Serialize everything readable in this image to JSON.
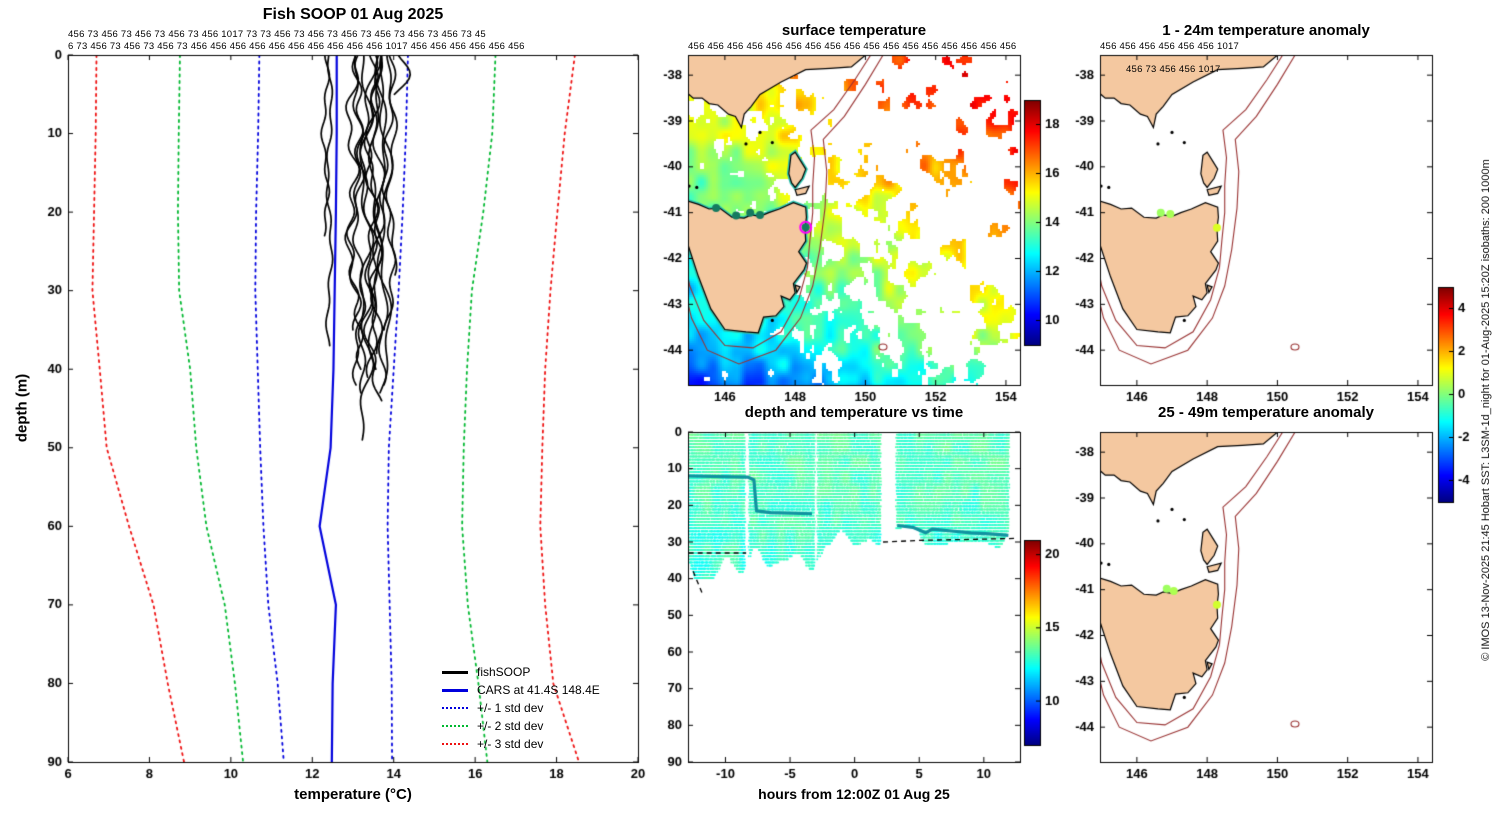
{
  "copyright": "© IMOS 13-Nov-2025 21:45 Hobart SST: L3SM-1d_night for 01-Aug-2025 15:20Z isobaths: 200  1000m",
  "top_labels": {
    "row1": "456 73 456 73 456 73 456 73 456 1017 73 73 456 73 456 73 456 73 456 73 456 73 456 73 45",
    "row2_left": "6 73 456 73 456 73 456 73 456 456 456 456 456 456 456 456 456 456 1017 456 456 456 456 456 456",
    "row2_mid": "456 456 456 456 456 456 456 456 456 456 456 456 456 456 456 456 456",
    "row2_right": "456 456 456 456 456 456 1017",
    "fragment": "456 73 456 456 1017"
  },
  "geo": {
    "land_color": "#f4c8a0",
    "coast_color": "#000000",
    "isobath_color": "#993333",
    "sst_coast_halo": "#2fc7b2",
    "mainland": [
      [
        144.9,
        -37.5
      ],
      [
        150.1,
        -37.5
      ],
      [
        149.6,
        -37.82
      ],
      [
        149.0,
        -37.85
      ],
      [
        148.3,
        -37.88
      ],
      [
        147.6,
        -38.15
      ],
      [
        147.0,
        -38.42
      ],
      [
        146.75,
        -38.68
      ],
      [
        146.55,
        -38.85
      ],
      [
        146.47,
        -39.14
      ],
      [
        146.3,
        -38.9
      ],
      [
        146.1,
        -38.85
      ],
      [
        145.8,
        -38.65
      ],
      [
        145.55,
        -38.62
      ],
      [
        145.35,
        -38.5
      ],
      [
        145.1,
        -38.5
      ],
      [
        144.9,
        -38.37
      ]
    ],
    "tasmania": [
      [
        144.68,
        -40.68
      ],
      [
        145.25,
        -40.82
      ],
      [
        145.55,
        -40.92
      ],
      [
        145.85,
        -40.9
      ],
      [
        146.2,
        -41.1
      ],
      [
        146.55,
        -41.12
      ],
      [
        146.75,
        -41.05
      ],
      [
        147.0,
        -41.08
      ],
      [
        147.25,
        -41.0
      ],
      [
        147.55,
        -40.92
      ],
      [
        147.95,
        -40.78
      ],
      [
        148.3,
        -40.88
      ],
      [
        148.32,
        -41.1
      ],
      [
        148.28,
        -41.35
      ],
      [
        148.3,
        -41.62
      ],
      [
        148.1,
        -41.85
      ],
      [
        148.32,
        -42.1
      ],
      [
        148.25,
        -42.25
      ],
      [
        147.95,
        -42.55
      ],
      [
        148.0,
        -42.75
      ],
      [
        147.85,
        -42.9
      ],
      [
        147.6,
        -42.82
      ],
      [
        147.68,
        -43.05
      ],
      [
        147.45,
        -43.25
      ],
      [
        147.1,
        -43.28
      ],
      [
        146.95,
        -43.62
      ],
      [
        146.6,
        -43.6
      ],
      [
        146.0,
        -43.55
      ],
      [
        145.6,
        -43.1
      ],
      [
        145.25,
        -42.4
      ],
      [
        144.95,
        -41.7
      ],
      [
        144.7,
        -41.2
      ]
    ],
    "flinders": [
      [
        147.82,
        -40.15
      ],
      [
        147.88,
        -39.75
      ],
      [
        148.0,
        -39.68
      ],
      [
        148.3,
        -40.05
      ],
      [
        148.2,
        -40.25
      ],
      [
        148.0,
        -40.45
      ],
      [
        147.9,
        -40.35
      ]
    ],
    "cape_barren": [
      [
        148.0,
        -40.5
      ],
      [
        148.4,
        -40.42
      ],
      [
        148.3,
        -40.58
      ],
      [
        148.05,
        -40.62
      ]
    ],
    "maria": [
      [
        148.0,
        -42.58
      ],
      [
        148.14,
        -42.62
      ],
      [
        148.05,
        -42.74
      ]
    ],
    "islets": [
      [
        146.6,
        -39.5
      ],
      [
        147.0,
        -39.25
      ],
      [
        147.35,
        -39.47
      ],
      [
        144.98,
        -40.42
      ],
      [
        145.2,
        -40.45
      ],
      [
        147.35,
        -43.35
      ]
    ],
    "isobath_200m": [
      [
        150.2,
        -37.5
      ],
      [
        149.7,
        -38.1
      ],
      [
        149.1,
        -38.75
      ],
      [
        148.45,
        -39.2
      ],
      [
        148.55,
        -39.8
      ],
      [
        148.5,
        -40.4
      ],
      [
        148.5,
        -41.0
      ],
      [
        148.42,
        -41.6
      ],
      [
        148.35,
        -42.2
      ],
      [
        148.1,
        -42.9
      ],
      [
        147.6,
        -43.6
      ],
      [
        146.8,
        -43.95
      ],
      [
        146.0,
        -43.9
      ],
      [
        145.4,
        -43.35
      ],
      [
        145.0,
        -42.6
      ],
      [
        144.8,
        -41.8
      ],
      [
        144.7,
        -40.9
      ]
    ],
    "isobath_1000m": [
      [
        150.55,
        -37.5
      ],
      [
        150.0,
        -38.2
      ],
      [
        149.4,
        -38.9
      ],
      [
        148.8,
        -39.4
      ],
      [
        148.9,
        -40.1
      ],
      [
        148.85,
        -40.9
      ],
      [
        148.7,
        -41.8
      ],
      [
        148.5,
        -42.6
      ],
      [
        148.15,
        -43.3
      ],
      [
        147.45,
        -44.0
      ],
      [
        146.4,
        -44.3
      ],
      [
        145.5,
        -44.0
      ],
      [
        145.05,
        -43.3
      ],
      [
        144.8,
        -42.5
      ],
      [
        144.65,
        -41.5
      ]
    ],
    "seamount": [
      150.5,
      -43.93
    ]
  },
  "chart_data": [
    {
      "id": "fish_soop_profiles",
      "type": "line",
      "title": "Fish SOOP 01 Aug 2025",
      "xlabel": "temperature (°C)",
      "ylabel": "depth (m)",
      "xlim": [
        6,
        20
      ],
      "ylim": [
        0,
        90
      ],
      "y_inverted": true,
      "xticks": [
        6,
        8,
        10,
        12,
        14,
        16,
        18,
        20
      ],
      "yticks": [
        0,
        10,
        20,
        30,
        40,
        50,
        60,
        70,
        80,
        90
      ],
      "depths": [
        0,
        10,
        20,
        30,
        40,
        50,
        60,
        70,
        80,
        90
      ],
      "series": [
        {
          "name": "CARS at 41.4S 148.4E",
          "color": "#0000dd",
          "dash": "solid",
          "width": 2.2,
          "temps": [
            12.6,
            12.6,
            12.58,
            12.55,
            12.52,
            12.45,
            12.18,
            12.58,
            12.5,
            12.48
          ]
        },
        {
          "name": "-1 std dev",
          "color": "#0000dd",
          "dash": "dot",
          "width": 1.8,
          "temps": [
            10.7,
            10.67,
            10.62,
            10.6,
            10.66,
            10.72,
            10.8,
            10.92,
            11.15,
            11.3
          ]
        },
        {
          "name": "+1 std dev",
          "color": "#0000dd",
          "dash": "dot",
          "width": 1.8,
          "temps": [
            14.35,
            14.3,
            14.22,
            14.12,
            14.0,
            13.88,
            13.85,
            13.9,
            13.95,
            13.96
          ]
        },
        {
          "name": "-2 std dev",
          "color": "#00b830",
          "dash": "dot",
          "width": 1.8,
          "temps": [
            8.75,
            8.72,
            8.7,
            8.73,
            9.0,
            9.15,
            9.4,
            9.85,
            10.1,
            10.3
          ]
        },
        {
          "name": "+2 std dev",
          "color": "#00b830",
          "dash": "dot",
          "width": 1.8,
          "temps": [
            16.5,
            16.42,
            16.2,
            15.92,
            15.8,
            15.72,
            15.68,
            15.82,
            16.08,
            16.3
          ]
        },
        {
          "name": "-3 std dev",
          "color": "#ee1111",
          "dash": "dot",
          "width": 1.8,
          "temps": [
            6.7,
            6.68,
            6.64,
            6.6,
            6.78,
            6.95,
            7.5,
            8.1,
            8.45,
            8.85
          ]
        },
        {
          "name": "+3 std dev",
          "color": "#ee1111",
          "dash": "dot",
          "width": 1.8,
          "temps": [
            18.45,
            18.2,
            18.02,
            17.85,
            17.72,
            17.65,
            17.6,
            17.72,
            17.92,
            18.55
          ]
        }
      ],
      "fishsoop": {
        "color": "#000000",
        "profiles": [
          {
            "temp": 12.32,
            "max_depth": 23,
            "wiggle": 0.06
          },
          {
            "temp": 12.42,
            "max_depth": 37,
            "wiggle": 0.05
          },
          {
            "temp": 13.0,
            "max_depth": 35,
            "wiggle": 0.12
          },
          {
            "temp": 13.05,
            "max_depth": 40,
            "wiggle": 0.12
          },
          {
            "temp": 13.15,
            "max_depth": 42,
            "wiggle": 0.1
          },
          {
            "temp": 13.3,
            "max_depth": 49,
            "wiggle": 0.12
          },
          {
            "temp": 13.35,
            "max_depth": 43,
            "wiggle": 0.15
          },
          {
            "temp": 13.45,
            "max_depth": 41,
            "wiggle": 0.1
          },
          {
            "temp": 13.5,
            "max_depth": 44,
            "wiggle": 0.14
          },
          {
            "temp": 13.55,
            "max_depth": 40,
            "wiggle": 0.1
          },
          {
            "temp": 13.62,
            "max_depth": 42,
            "wiggle": 0.12
          },
          {
            "temp": 13.7,
            "max_depth": 38,
            "wiggle": 0.1
          },
          {
            "temp": 13.78,
            "max_depth": 43,
            "wiggle": 0.12
          },
          {
            "temp": 13.88,
            "max_depth": 35,
            "wiggle": 0.1
          },
          {
            "temp": 13.95,
            "max_depth": 28,
            "wiggle": 0.08
          },
          {
            "temp": 14.0,
            "max_depth": 5,
            "wiggle": 0.25
          }
        ]
      },
      "legend": [
        {
          "label": "fishSOOP",
          "color": "#000000",
          "dash": "solid"
        },
        {
          "label": "CARS at 41.4S 148.4E",
          "color": "#0000dd",
          "dash": "solid"
        },
        {
          "label": "+/- 1 std dev",
          "color": "#0000dd",
          "dash": "dot"
        },
        {
          "label": "+/- 2 std dev",
          "color": "#00b830",
          "dash": "dot"
        },
        {
          "label": "+/- 3 std dev",
          "color": "#ee1111",
          "dash": "dot"
        }
      ]
    },
    {
      "id": "surface_temperature",
      "type": "heatmap",
      "title": "surface temperature",
      "xlim": [
        144.95,
        154.4
      ],
      "ylim": [
        -44.76,
        -37.56
      ],
      "xticks": [
        146,
        148,
        150,
        152,
        154
      ],
      "yticks": [
        -38,
        -39,
        -40,
        -41,
        -42,
        -43,
        -44
      ],
      "colorbar": {
        "min": 9,
        "max": 19,
        "ticks": [
          10,
          12,
          14,
          16,
          18
        ]
      },
      "field": {
        "base": 11.4,
        "lon_grad": 0.32,
        "lat_grad": 0.55,
        "noise_amp": 1.5,
        "south_cool": 1.0,
        "gap_base": 0.15,
        "gap_ne": 0.5
      },
      "profile_dots": [
        {
          "lon": 145.75,
          "lat": -40.9,
          "color": "#157a60"
        },
        {
          "lon": 146.32,
          "lat": -41.06,
          "color": "#157a60"
        },
        {
          "lon": 146.72,
          "lat": -41.0,
          "color": "#157a60"
        },
        {
          "lon": 147.0,
          "lat": -41.05,
          "color": "#157a60"
        }
      ],
      "marker": {
        "lon": 148.3,
        "lat": -41.32,
        "ring_color": "#ff00ff",
        "fill_color": "#157a60"
      }
    },
    {
      "id": "depth_temperature_vs_time",
      "type": "scatter",
      "title": "depth and temperature vs time",
      "xlabel": "hours from 12:00Z 01 Aug 25",
      "xlim": [
        -12.9,
        12.8
      ],
      "ylim": [
        0,
        90
      ],
      "y_inverted": true,
      "xticks": [
        -10,
        -5,
        0,
        5,
        10
      ],
      "yticks": [
        0,
        10,
        20,
        30,
        40,
        50,
        60,
        70,
        80,
        90
      ],
      "colorbar": {
        "min": 7,
        "max": 21,
        "ticks": [
          10,
          15,
          20
        ]
      },
      "mean_temp": 13.1,
      "clusters": [
        {
          "t0": -12.85,
          "t1": -8.55,
          "dmin": 30,
          "dmax": 48
        },
        {
          "t0": -8.2,
          "t1": -3.2,
          "dmin": 28,
          "dmax": 42
        },
        {
          "t0": -2.9,
          "t1": 1.9,
          "dmin": 26,
          "dmax": 38
        },
        {
          "t0": 3.2,
          "t1": 11.9,
          "dmin": 24,
          "dmax": 34
        }
      ],
      "track": {
        "color": "#1192a0",
        "segments": [
          [
            [
              -12.85,
              12
            ],
            [
              -8.3,
              12.3
            ],
            [
              -7.8,
              13
            ],
            [
              -7.6,
              21.5
            ],
            [
              -6.5,
              22
            ],
            [
              -3.3,
              22.3
            ]
          ],
          [
            [
              3.3,
              25.5
            ],
            [
              4.5,
              26
            ],
            [
              5.5,
              27.5
            ],
            [
              6.0,
              26.5
            ],
            [
              7.5,
              27
            ],
            [
              9.0,
              27.5
            ],
            [
              10.5,
              27.8
            ],
            [
              11.9,
              28.2
            ]
          ]
        ]
      },
      "dashed_segments": [
        [
          [
            -12.85,
            33
          ],
          [
            -8.4,
            33
          ]
        ],
        [
          [
            -12.5,
            38
          ],
          [
            -11.8,
            44
          ]
        ],
        [
          [
            2.2,
            30
          ],
          [
            5.5,
            29.5
          ],
          [
            9.0,
            29.3
          ],
          [
            12.6,
            29.0
          ]
        ]
      ]
    },
    {
      "id": "anomaly_1_24m",
      "type": "map",
      "title": "1 - 24m temperature anomaly",
      "xlim": [
        144.95,
        154.4
      ],
      "ylim": [
        -44.76,
        -37.56
      ],
      "xticks": [
        146,
        148,
        150,
        152,
        154
      ],
      "yticks": [
        -38,
        -39,
        -40,
        -41,
        -42,
        -43,
        -44
      ],
      "colorbar": {
        "min": -5,
        "max": 5,
        "ticks": [
          4,
          2,
          0,
          -2,
          -4
        ]
      },
      "dots": [
        {
          "lon": 146.68,
          "lat": -41.0,
          "value": 0.3
        },
        {
          "lon": 146.95,
          "lat": -41.03,
          "value": 0.4
        },
        {
          "lon": 148.28,
          "lat": -41.33,
          "value": 0.9
        }
      ]
    },
    {
      "id": "anomaly_25_49m",
      "type": "map",
      "title": "25 - 49m temperature anomaly",
      "xlim": [
        144.95,
        154.4
      ],
      "ylim": [
        -44.76,
        -37.56
      ],
      "xticks": [
        146,
        148,
        150,
        152,
        154
      ],
      "yticks": [
        -38,
        -39,
        -40,
        -41,
        -42,
        -43,
        -44
      ],
      "colorbar": {
        "min": -5,
        "max": 5,
        "ticks": [
          4,
          2,
          0,
          -2,
          -4
        ]
      },
      "dots": [
        {
          "lon": 146.85,
          "lat": -40.98,
          "value": 0.3
        },
        {
          "lon": 147.05,
          "lat": -41.03,
          "value": 0.45
        },
        {
          "lon": 148.28,
          "lat": -41.33,
          "value": 0.8
        }
      ]
    }
  ]
}
